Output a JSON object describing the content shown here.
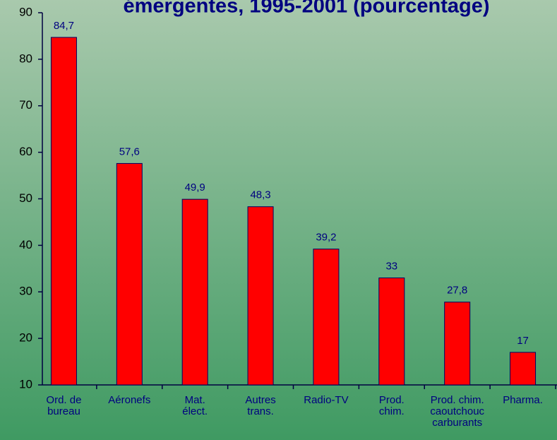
{
  "chart_data": {
    "type": "bar",
    "title": "émergentes, 1995-2001 (pourcentage)",
    "categories": [
      "Ord. de\nbureau",
      "Aéronefs",
      "Mat.\nélect.",
      "Autres\ntrans.",
      "Radio-TV",
      "Prod.\nchim.",
      "Prod. chim.\ncaoutchouc\ncarburants",
      "Pharma."
    ],
    "values": [
      84.7,
      57.6,
      49.9,
      48.3,
      39.2,
      33,
      27.8,
      17
    ],
    "value_labels": [
      "84,7",
      "57,6",
      "49,9",
      "48,3",
      "39,2",
      "33",
      "27,8",
      "17"
    ],
    "color": "#ff0000",
    "ylim": [
      10,
      90
    ],
    "yticks": [
      10,
      20,
      30,
      40,
      50,
      60,
      70,
      80,
      90
    ]
  }
}
